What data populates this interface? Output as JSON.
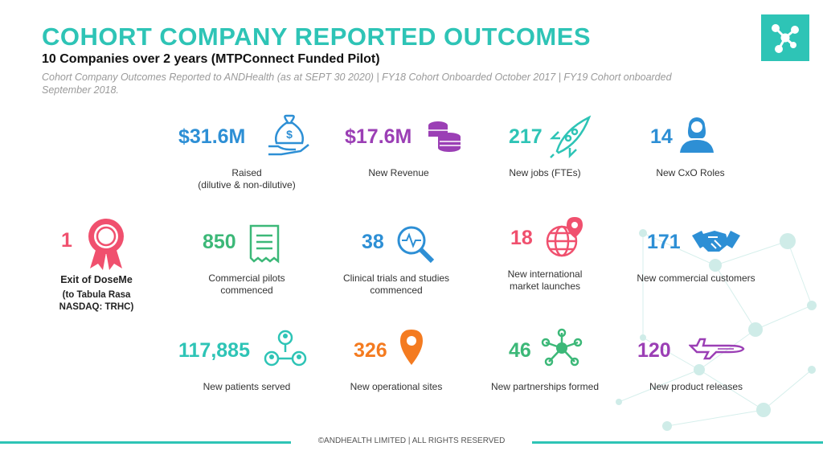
{
  "header": {
    "title": "COHORT COMPANY REPORTED OUTCOMES",
    "subtitle": "10 Companies over 2 years (MTPConnect Funded Pilot)",
    "description": "Cohort Company Outcomes Reported to ANDHealth (as at SEPT 30 2020) | FY18 Cohort Onboarded October 2017 | FY19 Cohort onboarded September 2018."
  },
  "logo": {
    "icon": "network-node-icon",
    "color": "#2ec4b6"
  },
  "exit": {
    "value": "1",
    "label": "Exit of DoseMe",
    "detail": "(to Tabula Rasa\nNASDAQ: TRHC)",
    "icon": "award-ribbon-icon",
    "color": "#f0506e"
  },
  "stats": [
    {
      "value": "$31.6M",
      "label": "Raised\n(dilutive & non-dilutive)",
      "icon": "money-bag-hand-icon",
      "color": "#2d8fd5"
    },
    {
      "value": "$17.6M",
      "label": "New Revenue",
      "icon": "coins-stack-icon",
      "color": "#9b3fb5"
    },
    {
      "value": "217",
      "label": "New jobs (FTEs)",
      "icon": "rocket-icon",
      "color": "#2ec4b6"
    },
    {
      "value": "14",
      "label": "New CxO Roles",
      "icon": "person-icon",
      "color": "#2d8fd5"
    },
    {
      "value": "850",
      "label": "Commercial pilots\ncommenced",
      "icon": "receipt-icon",
      "color": "#3cb878"
    },
    {
      "value": "38",
      "label": "Clinical trials and studies\ncommenced",
      "icon": "magnifier-pulse-icon",
      "color": "#2d8fd5"
    },
    {
      "value": "18",
      "label": "New international\nmarket launches",
      "icon": "globe-pin-icon",
      "color": "#f0506e"
    },
    {
      "value": "171",
      "label": "New commercial customers",
      "icon": "handshake-icon",
      "color": "#2d8fd5"
    },
    {
      "value": "117,885",
      "label": "New patients served",
      "icon": "people-network-icon",
      "color": "#2ec4b6"
    },
    {
      "value": "326",
      "label": "New operational sites",
      "icon": "location-pin-icon",
      "color": "#f47b20"
    },
    {
      "value": "46",
      "label": "New partnerships formed",
      "icon": "hub-network-icon",
      "color": "#3cb878"
    },
    {
      "value": "120",
      "label": "New product releases",
      "icon": "airplane-icon",
      "color": "#9b3fb5"
    }
  ],
  "footer": {
    "text": "©ANDHEALTH LIMITED  |  ALL RIGHTS RESERVED"
  }
}
